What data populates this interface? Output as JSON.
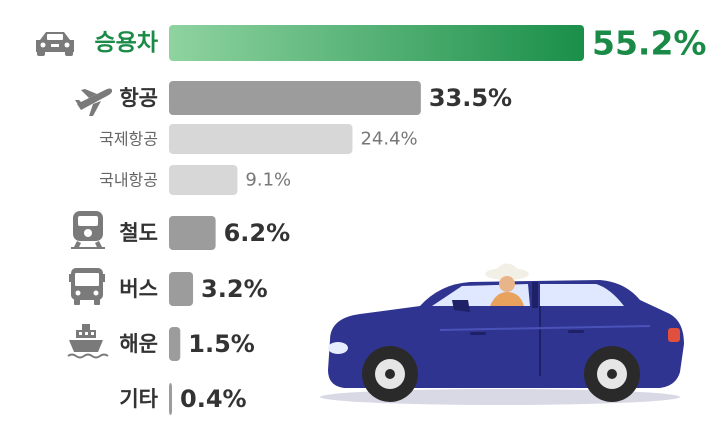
{
  "chart_data": {
    "type": "bar",
    "orientation": "horizontal",
    "categories": [
      "승용차",
      "항공",
      "국제항공",
      "국내항공",
      "철도",
      "버스",
      "해운",
      "기타"
    ],
    "values": [
      55.2,
      33.5,
      24.4,
      9.1,
      6.2,
      3.2,
      1.5,
      0.4
    ],
    "value_labels": [
      "55.2%",
      "33.5%",
      "24.4%",
      "9.1%",
      "6.2%",
      "3.2%",
      "1.5%",
      "0.4%"
    ],
    "subcategory_of": [
      null,
      null,
      "항공",
      "항공",
      null,
      null,
      null,
      null
    ],
    "icons": [
      "car-icon",
      "airplane-icon",
      null,
      null,
      "train-icon",
      "bus-icon",
      "ship-icon",
      null
    ],
    "unit": "%",
    "grid": false,
    "legend": "none"
  },
  "colors": {
    "highlight_start": "#8fd3a0",
    "highlight_end": "#1a8f4a",
    "highlight_text": "#1a8a47",
    "main_bar": "#9c9c9c",
    "sub_bar": "#d7d7d7",
    "main_text": "#333333",
    "sub_text": "#666666",
    "icon": "#7a7a7a",
    "car_body": "#2f3490",
    "car_dark": "#1e2166",
    "window": "#dfe8ff",
    "tire": "#2a2a2a"
  }
}
